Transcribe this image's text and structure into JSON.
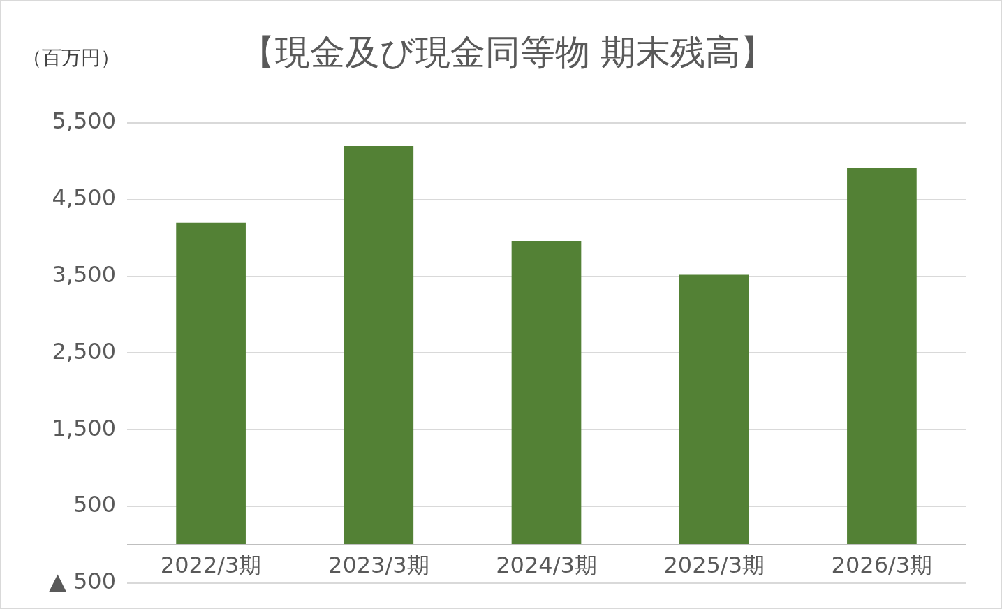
{
  "chart_data": {
    "type": "bar",
    "title": "【現金及び現金同等物 期末残高】",
    "ylabel": "（百万円）",
    "categories": [
      "2022/3期",
      "2023/3期",
      "2024/3期",
      "2025/3期",
      "2026/3期"
    ],
    "values": [
      4200,
      5200,
      3960,
      3520,
      4910
    ],
    "color": "#538135",
    "ylim": [
      -500,
      5500
    ],
    "yticks": [
      {
        "value": -500,
        "label": "▲ 500"
      },
      {
        "value": 500,
        "label": "500"
      },
      {
        "value": 1500,
        "label": "1,500"
      },
      {
        "value": 2500,
        "label": "2,500"
      },
      {
        "value": 3500,
        "label": "3,500"
      },
      {
        "value": 4500,
        "label": "4,500"
      },
      {
        "value": 5500,
        "label": "5,500"
      }
    ],
    "grid": "y",
    "legend": false
  }
}
